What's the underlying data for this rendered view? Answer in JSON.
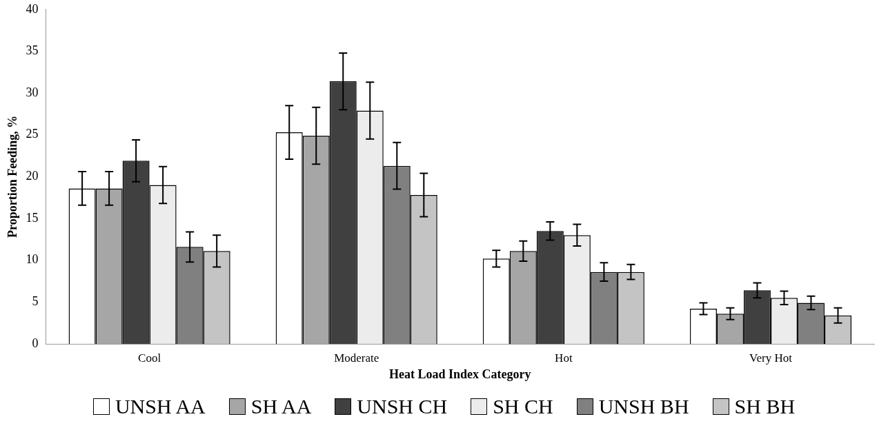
{
  "chart_data": {
    "type": "bar",
    "xlabel": "Heat Load Index Category",
    "ylabel": "Proportion Feeding, %",
    "categories": [
      "Cool",
      "Moderate",
      "Hot",
      "Very Hot"
    ],
    "series": [
      {
        "name": "UNSH AA",
        "color": "#ffffff",
        "values": [
          18.6,
          25.3,
          10.2,
          4.2
        ],
        "errors": [
          2.0,
          3.2,
          1.0,
          0.7
        ]
      },
      {
        "name": "SH AA",
        "color": "#a6a6a6",
        "values": [
          18.6,
          24.9,
          11.1,
          3.6
        ],
        "errors": [
          2.0,
          3.4,
          1.2,
          0.7
        ]
      },
      {
        "name": "UNSH CH",
        "color": "#404040",
        "values": [
          21.9,
          31.4,
          13.5,
          6.4
        ],
        "errors": [
          2.5,
          3.4,
          1.1,
          0.9
        ]
      },
      {
        "name": "SH CH",
        "color": "#ececec",
        "values": [
          19.0,
          27.9,
          13.0,
          5.5
        ],
        "errors": [
          2.2,
          3.4,
          1.3,
          0.8
        ]
      },
      {
        "name": "UNSH BH",
        "color": "#808080",
        "values": [
          11.6,
          21.3,
          8.6,
          4.9
        ],
        "errors": [
          1.8,
          2.8,
          1.1,
          0.8
        ]
      },
      {
        "name": "SH BH",
        "color": "#c4c4c4",
        "values": [
          11.1,
          17.8,
          8.6,
          3.4
        ],
        "errors": [
          1.9,
          2.6,
          0.9,
          0.9
        ]
      }
    ],
    "ylim": [
      0,
      40
    ],
    "yticks": [
      0,
      5,
      10,
      15,
      20,
      25,
      30,
      35,
      40
    ],
    "grid": false,
    "legend": "bottom"
  }
}
